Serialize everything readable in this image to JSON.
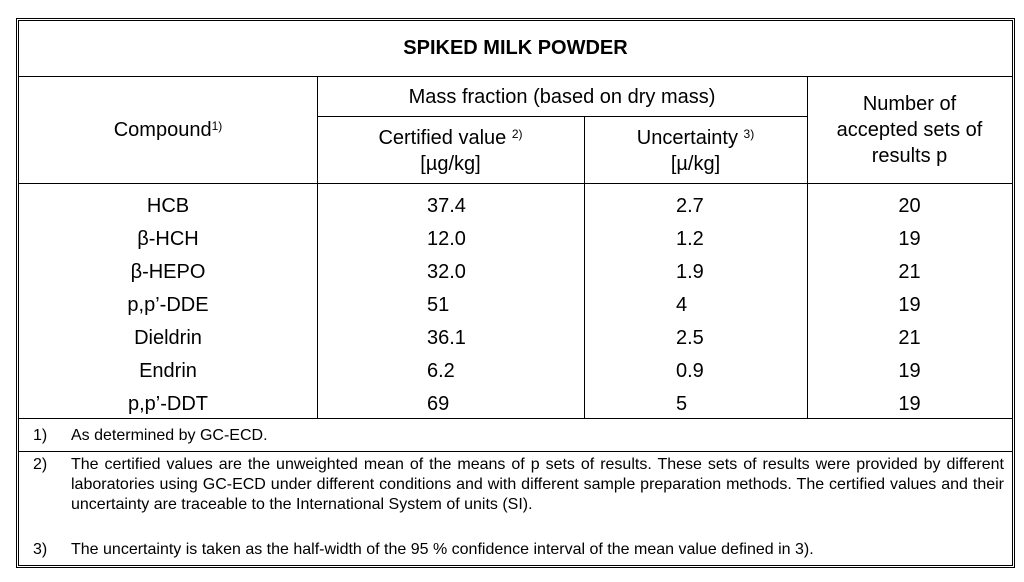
{
  "title": "SPIKED MILK POWDER",
  "header": {
    "compound": "Compound",
    "compound_sup": "1)",
    "mass_fraction": "Mass fraction (based on dry mass)",
    "certified_value": "Certified value",
    "certified_sup": "2)",
    "certified_unit": "[µg/kg]",
    "uncertainty": "Uncertainty",
    "uncertainty_sup": "3)",
    "uncertainty_unit": "[µ/kg]",
    "number_line1": "Number of",
    "number_line2": "accepted sets of",
    "number_line3": "results p"
  },
  "rows": [
    {
      "compound": "HCB",
      "certified": "37.4",
      "uncertainty": "2.7",
      "number": "20"
    },
    {
      "compound": "β-HCH",
      "certified": "12.0",
      "uncertainty": "1.2",
      "number": "19"
    },
    {
      "compound": "β-HEPO",
      "certified": "32.0",
      "uncertainty": "1.9",
      "number": "21"
    },
    {
      "compound": "p,p’-DDE",
      "certified": "51",
      "uncertainty": "4",
      "number": "19"
    },
    {
      "compound": "Dieldrin",
      "certified": "36.1",
      "uncertainty": "2.5",
      "number": "21"
    },
    {
      "compound": "Endrin",
      "certified": "6.2",
      "uncertainty": "0.9",
      "number": "19"
    },
    {
      "compound": "p,p’-DDT",
      "certified": "69",
      "uncertainty": "5",
      "number": "19"
    }
  ],
  "footnotes": [
    {
      "num": "1)",
      "text": "As determined by GC-ECD."
    },
    {
      "num": "2)",
      "text": "The certified values are the unweighted mean of the means of p sets of results. These sets of results were provided by different laboratories using GC-ECD under different conditions and with different sample preparation methods. The certified values and their uncertainty are traceable to the International System of units (SI)."
    },
    {
      "num": "3)",
      "text": "The uncertainty is taken as the half-width of the 95 % confidence interval of the mean value defined in 3)."
    }
  ]
}
